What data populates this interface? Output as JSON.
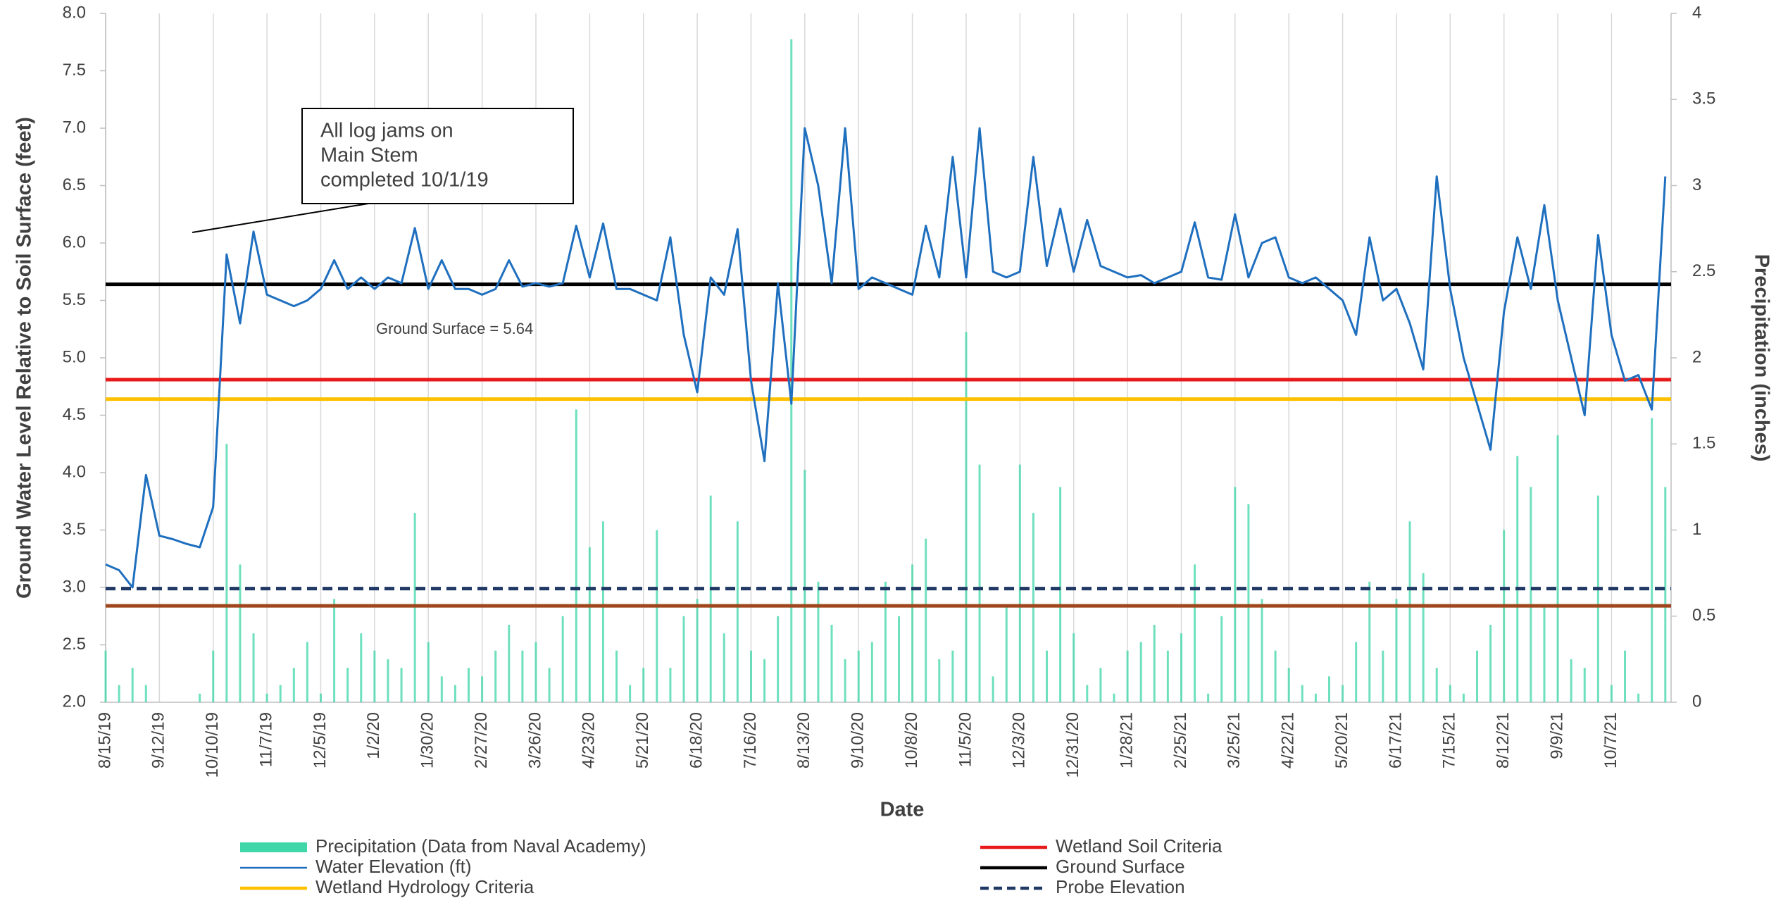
{
  "chart_data": {
    "type": "combo",
    "xlabel": "Date",
    "ylabel": "Ground Water Level Relative to Soil Surface (feet)",
    "y2label": "Precipitation (inches)",
    "xlim": [
      "2019-08-15",
      "2021-11-07"
    ],
    "ylim": [
      2.0,
      8.0
    ],
    "y2lim": [
      0,
      4
    ],
    "grid": true,
    "xticks": [
      {
        "value": "2019-08-15",
        "label": "8/15/19"
      },
      {
        "value": "2019-09-12",
        "label": "9/12/19"
      },
      {
        "value": "2019-10-10",
        "label": "10/10/19"
      },
      {
        "value": "2019-11-07",
        "label": "11/7/19"
      },
      {
        "value": "2019-12-05",
        "label": "12/5/19"
      },
      {
        "value": "2020-01-02",
        "label": "1/2/20"
      },
      {
        "value": "2020-01-30",
        "label": "1/30/20"
      },
      {
        "value": "2020-02-27",
        "label": "2/27/20"
      },
      {
        "value": "2020-03-26",
        "label": "3/26/20"
      },
      {
        "value": "2020-04-23",
        "label": "4/23/20"
      },
      {
        "value": "2020-05-21",
        "label": "5/21/20"
      },
      {
        "value": "2020-06-18",
        "label": "6/18/20"
      },
      {
        "value": "2020-07-16",
        "label": "7/16/20"
      },
      {
        "value": "2020-08-13",
        "label": "8/13/20"
      },
      {
        "value": "2020-09-10",
        "label": "9/10/20"
      },
      {
        "value": "2020-10-08",
        "label": "10/8/20"
      },
      {
        "value": "2020-11-05",
        "label": "11/5/20"
      },
      {
        "value": "2020-12-03",
        "label": "12/3/20"
      },
      {
        "value": "2020-12-31",
        "label": "12/31/20"
      },
      {
        "value": "2021-01-28",
        "label": "1/28/21"
      },
      {
        "value": "2021-02-25",
        "label": "2/25/21"
      },
      {
        "value": "2021-03-25",
        "label": "3/25/21"
      },
      {
        "value": "2021-04-22",
        "label": "4/22/21"
      },
      {
        "value": "2021-05-20",
        "label": "5/20/21"
      },
      {
        "value": "2021-06-17",
        "label": "6/17/21"
      },
      {
        "value": "2021-07-15",
        "label": "7/15/21"
      },
      {
        "value": "2021-08-12",
        "label": "8/12/21"
      },
      {
        "value": "2021-09-09",
        "label": "9/9/21"
      },
      {
        "value": "2021-10-07",
        "label": "10/7/21"
      }
    ],
    "yticks": [
      {
        "value": 2.0,
        "label": "2.0"
      },
      {
        "value": 2.5,
        "label": "2.5"
      },
      {
        "value": 3.0,
        "label": "3.0"
      },
      {
        "value": 3.5,
        "label": "3.5"
      },
      {
        "value": 4.0,
        "label": "4.0"
      },
      {
        "value": 4.5,
        "label": "4.5"
      },
      {
        "value": 5.0,
        "label": "5.0"
      },
      {
        "value": 5.5,
        "label": "5.5"
      },
      {
        "value": 6.0,
        "label": "6.0"
      },
      {
        "value": 6.5,
        "label": "6.5"
      },
      {
        "value": 7.0,
        "label": "7.0"
      },
      {
        "value": 7.5,
        "label": "7.5"
      },
      {
        "value": 8.0,
        "label": "8.0"
      }
    ],
    "y2ticks": [
      0,
      0.5,
      1,
      1.5,
      2,
      2.5,
      3,
      3.5,
      4
    ],
    "x": [
      "2019-08-15",
      "2019-08-22",
      "2019-08-29",
      "2019-09-05",
      "2019-09-12",
      "2019-09-19",
      "2019-09-26",
      "2019-10-03",
      "2019-10-10",
      "2019-10-17",
      "2019-10-24",
      "2019-10-31",
      "2019-11-07",
      "2019-11-14",
      "2019-11-21",
      "2019-11-28",
      "2019-12-05",
      "2019-12-12",
      "2019-12-19",
      "2019-12-26",
      "2020-01-02",
      "2020-01-09",
      "2020-01-16",
      "2020-01-23",
      "2020-01-30",
      "2020-02-06",
      "2020-02-13",
      "2020-02-20",
      "2020-02-27",
      "2020-03-05",
      "2020-03-12",
      "2020-03-19",
      "2020-03-26",
      "2020-04-02",
      "2020-04-09",
      "2020-04-16",
      "2020-04-23",
      "2020-04-30",
      "2020-05-07",
      "2020-05-14",
      "2020-05-21",
      "2020-05-28",
      "2020-06-04",
      "2020-06-11",
      "2020-06-18",
      "2020-06-25",
      "2020-07-02",
      "2020-07-09",
      "2020-07-16",
      "2020-07-23",
      "2020-07-30",
      "2020-08-06",
      "2020-08-13",
      "2020-08-20",
      "2020-08-27",
      "2020-09-03",
      "2020-09-10",
      "2020-09-17",
      "2020-09-24",
      "2020-10-01",
      "2020-10-08",
      "2020-10-15",
      "2020-10-22",
      "2020-10-29",
      "2020-11-05",
      "2020-11-12",
      "2020-11-19",
      "2020-11-26",
      "2020-12-03",
      "2020-12-10",
      "2020-12-17",
      "2020-12-24",
      "2020-12-31",
      "2021-01-07",
      "2021-01-14",
      "2021-01-21",
      "2021-01-28",
      "2021-02-04",
      "2021-02-11",
      "2021-02-18",
      "2021-02-25",
      "2021-03-04",
      "2021-03-11",
      "2021-03-18",
      "2021-03-25",
      "2021-04-01",
      "2021-04-08",
      "2021-04-15",
      "2021-04-22",
      "2021-04-29",
      "2021-05-06",
      "2021-05-13",
      "2021-05-20",
      "2021-05-27",
      "2021-06-03",
      "2021-06-10",
      "2021-06-17",
      "2021-06-24",
      "2021-07-01",
      "2021-07-08",
      "2021-07-15",
      "2021-07-22",
      "2021-07-29",
      "2021-08-05",
      "2021-08-12",
      "2021-08-19",
      "2021-08-26",
      "2021-09-02",
      "2021-09-09",
      "2021-09-16",
      "2021-09-23",
      "2021-09-30",
      "2021-10-07",
      "2021-10-14",
      "2021-10-21",
      "2021-10-28",
      "2021-11-04"
    ],
    "series": [
      {
        "name": "Precipitation (Data from Naval Academy)",
        "kind": "bar",
        "axis": "y2",
        "color": "#3fd6a8",
        "values": [
          0.3,
          0.1,
          0.2,
          0.1,
          0,
          0,
          0,
          0.05,
          0.3,
          1.5,
          0.8,
          0.4,
          0.05,
          0.1,
          0.2,
          0.35,
          0.05,
          0.6,
          0.2,
          0.4,
          0.3,
          0.25,
          0.2,
          1.1,
          0.35,
          0.15,
          0.1,
          0.2,
          0.15,
          0.3,
          0.45,
          0.3,
          0.35,
          0.2,
          0.5,
          1.7,
          0.9,
          1.05,
          0.3,
          0.1,
          0.2,
          1.0,
          0.2,
          0.5,
          0.6,
          1.2,
          0.4,
          1.05,
          0.3,
          0.25,
          0.5,
          3.85,
          1.35,
          0.7,
          0.45,
          0.25,
          0.3,
          0.35,
          0.7,
          0.5,
          0.8,
          0.95,
          0.25,
          0.3,
          2.15,
          1.38,
          0.15,
          0.55,
          1.38,
          1.1,
          0.3,
          1.25,
          0.4,
          0.1,
          0.2,
          0.05,
          0.3,
          0.35,
          0.45,
          0.3,
          0.4,
          0.8,
          0.05,
          0.5,
          1.25,
          1.15,
          0.6,
          0.3,
          0.2,
          0.1,
          0.05,
          0.15,
          0.1,
          0.35,
          0.7,
          0.3,
          0.6,
          1.05,
          0.75,
          0.2,
          0.1,
          0.05,
          0.3,
          0.45,
          1.0,
          1.43,
          1.25,
          0.55,
          1.55,
          0.25,
          0.2,
          1.2,
          0.1,
          0.3,
          0.05,
          1.65,
          1.25
        ]
      },
      {
        "name": "Water Elevation (ft)",
        "kind": "line",
        "color": "#1f6fbf",
        "values": [
          3.2,
          3.15,
          3.0,
          3.98,
          3.45,
          3.42,
          3.38,
          3.35,
          3.7,
          5.9,
          5.3,
          6.1,
          5.55,
          5.5,
          5.45,
          5.5,
          5.6,
          5.85,
          5.6,
          5.7,
          5.6,
          5.7,
          5.65,
          6.13,
          5.6,
          5.85,
          5.6,
          5.6,
          5.55,
          5.6,
          5.85,
          5.62,
          5.65,
          5.62,
          5.65,
          6.15,
          5.7,
          6.17,
          5.6,
          5.6,
          5.55,
          5.5,
          6.05,
          5.2,
          4.7,
          5.7,
          5.55,
          6.12,
          4.8,
          4.1,
          5.65,
          4.6,
          7.0,
          6.5,
          5.65,
          7.0,
          5.6,
          5.7,
          5.65,
          5.6,
          5.55,
          6.15,
          5.7,
          6.75,
          5.7,
          7.0,
          5.75,
          5.7,
          5.75,
          6.75,
          5.8,
          6.3,
          5.75,
          6.2,
          5.8,
          5.75,
          5.7,
          5.72,
          5.65,
          5.7,
          5.75,
          6.18,
          5.7,
          5.68,
          6.25,
          5.7,
          6.0,
          6.05,
          5.7,
          5.65,
          5.7,
          5.6,
          5.5,
          5.2,
          6.05,
          5.5,
          5.6,
          5.3,
          4.9,
          6.58,
          5.6,
          5.0,
          4.6,
          4.2,
          5.4,
          6.05,
          5.6,
          6.33,
          5.5,
          5.0,
          4.5,
          6.07,
          5.2,
          4.8,
          4.85,
          4.55,
          6.58
        ]
      }
    ],
    "reference_lines": [
      {
        "name": "Wetland Hydrology Criteria",
        "value": 4.64,
        "color": "#ffc000"
      },
      {
        "name": "Wetland Soil Criteria",
        "value": 4.81,
        "color": "#e8191a"
      },
      {
        "name": "Ground Surface",
        "value": 5.64,
        "color": "#000000"
      },
      {
        "name": "Probe Elevation",
        "value": 2.99,
        "color": "#1f3864",
        "dashed": true
      },
      {
        "value": 2.84,
        "color": "#a0461c"
      }
    ],
    "annotations": [
      {
        "text": [
          "All log jams on",
          "Main Stem",
          "completed 10/1/19"
        ]
      },
      {
        "text": "Ground Surface = 5.64"
      }
    ]
  }
}
